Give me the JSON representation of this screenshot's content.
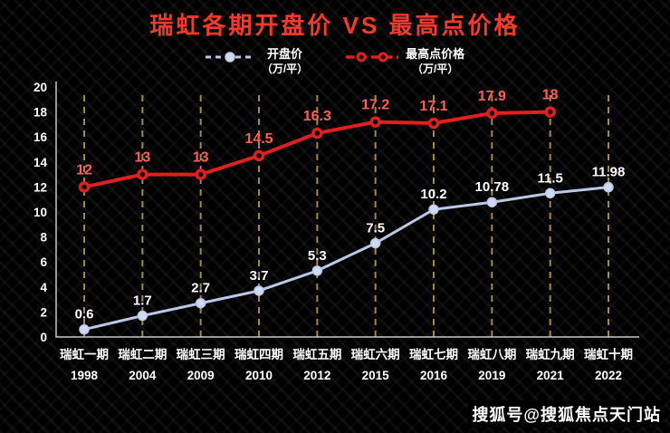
{
  "title": "瑞虹各期开盘价 VS 最高点价格",
  "legend": [
    {
      "label": "开盘价",
      "unit": "（万/平）"
    },
    {
      "label": "最高点价格",
      "unit": "（万/平）"
    }
  ],
  "watermark": "搜狐号@搜狐焦点天门站",
  "colors": {
    "title_red": "#f5392b",
    "line_red": "#e01f1f",
    "label_red": "#ff5f52",
    "line_blue": "#bcc8e8",
    "marker_blue": "#cfd9f2",
    "label_white": "#ffffff",
    "guide": "#a08b3f",
    "axis": "#c8c8c8",
    "tick_text": "#ffffff"
  },
  "chart_data": {
    "type": "line",
    "title": "瑞虹各期开盘价 VS 最高点价格",
    "categories": [
      {
        "name": "瑞虹一期",
        "year": "1998"
      },
      {
        "name": "瑞虹二期",
        "year": "2004"
      },
      {
        "name": "瑞虹三期",
        "year": "2009"
      },
      {
        "name": "瑞虹四期",
        "year": "2010"
      },
      {
        "name": "瑞虹五期",
        "year": "2012"
      },
      {
        "name": "瑞虹六期",
        "year": "2015"
      },
      {
        "name": "瑞虹七期",
        "year": "2016"
      },
      {
        "name": "瑞虹八期",
        "year": "2019"
      },
      {
        "name": "瑞虹九期",
        "year": "2021"
      },
      {
        "name": "瑞虹十期",
        "year": "2022"
      }
    ],
    "series": [
      {
        "name": "开盘价",
        "values": [
          0.6,
          1.7,
          2.7,
          3.7,
          5.3,
          7.5,
          10.2,
          10.78,
          11.5,
          11.98
        ],
        "color_key": "line_blue",
        "marker": "dot",
        "label_color_key": "label_white"
      },
      {
        "name": "最高点价格",
        "values": [
          12,
          13,
          13,
          14.5,
          16.3,
          17.2,
          17.1,
          17.9,
          18,
          null
        ],
        "color_key": "line_red",
        "marker": "donut",
        "label_color_key": "label_red"
      }
    ],
    "ylim": [
      0,
      20
    ],
    "ytick_step": 2,
    "grid": "vertical-dashed",
    "legend_position": "top"
  }
}
